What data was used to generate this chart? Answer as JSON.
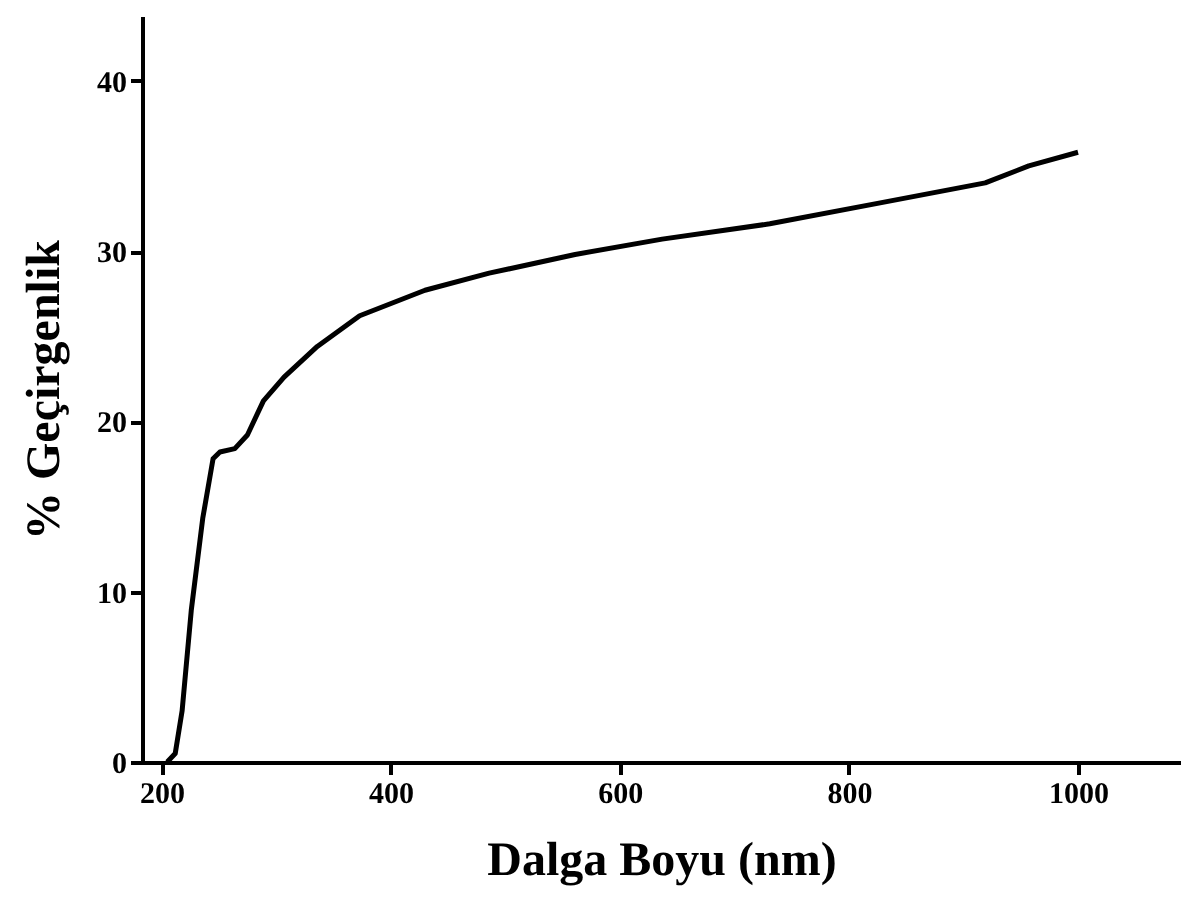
{
  "chart_data": {
    "type": "line",
    "xlabel": "Dalga Boyu (nm)",
    "ylabel": "% Geçirgenlik",
    "x": [
      205,
      212,
      218,
      226,
      236,
      245,
      251,
      264,
      275,
      289,
      307,
      336,
      373,
      430,
      486,
      561,
      637,
      731,
      825,
      919,
      957,
      1000
    ],
    "series": [
      {
        "color": "#000000",
        "values": [
          0,
          0.5,
          3,
          8.9,
          14.3,
          17.8,
          18.2,
          18.4,
          19.2,
          21.2,
          22.6,
          24.4,
          26.2,
          27.7,
          28.7,
          29.8,
          30.7,
          31.6,
          32.8,
          34.0,
          35.0,
          35.8
        ]
      }
    ],
    "xlim": [
      183,
      1089
    ],
    "ylim": [
      0,
      43.8
    ],
    "xticks": [
      200,
      400,
      600,
      800,
      1000
    ],
    "yticks": [
      0,
      10,
      20,
      30,
      40
    ],
    "grid": false,
    "marker": "none",
    "line_style": "solid"
  }
}
